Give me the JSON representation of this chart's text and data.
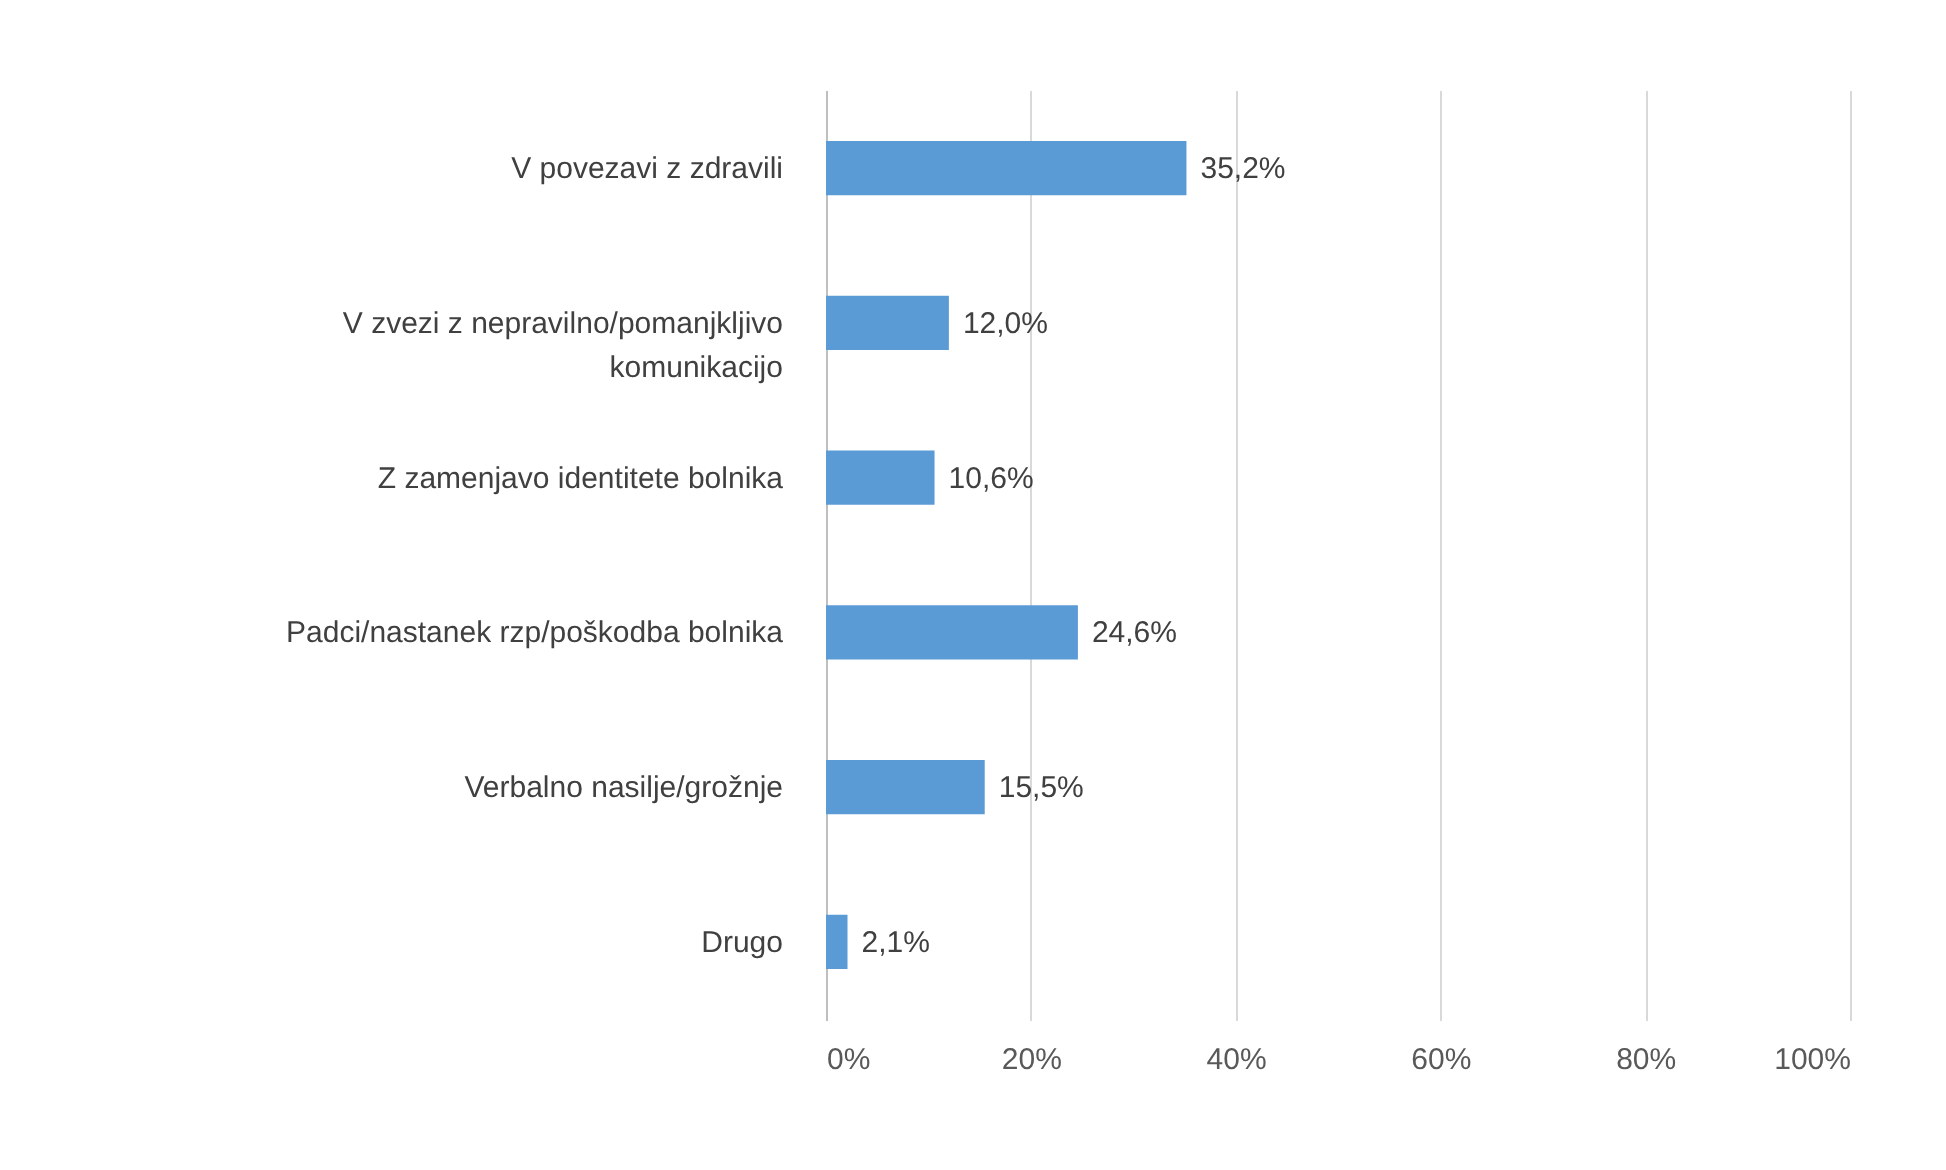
{
  "chart_data": {
    "type": "bar",
    "orientation": "horizontal",
    "categories": [
      "V povezavi z zdravili",
      "V zvezi z nepravilno/pomanjkljivo komunikacijo",
      "Z zamenjavo identitete bolnika",
      "Padci/nastanek rzp/poškodba bolnika",
      "Verbalno nasilje/grožnje",
      "Drugo"
    ],
    "values": [
      35.2,
      12.0,
      10.6,
      24.6,
      15.5,
      2.1
    ],
    "value_labels": [
      "35,2%",
      "12,0%",
      "10,6%",
      "24,6%",
      "15,5%",
      "2,1%"
    ],
    "color": "#5b9bd5",
    "xlim": [
      0,
      100
    ],
    "xticks": [
      {
        "value": 0,
        "label": "0%"
      },
      {
        "value": 20,
        "label": "20%"
      },
      {
        "value": 40,
        "label": "40%"
      },
      {
        "value": 60,
        "label": "60%"
      },
      {
        "value": 80,
        "label": "80%"
      },
      {
        "value": 100,
        "label": "100%"
      }
    ],
    "grid": "x"
  }
}
